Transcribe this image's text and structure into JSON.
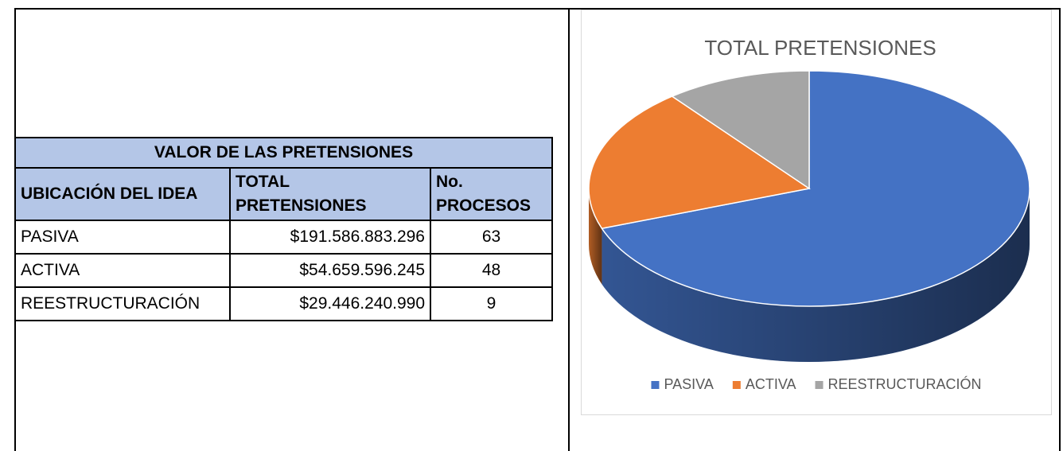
{
  "table": {
    "title": "VALOR DE LAS PRETENSIONES",
    "headers": [
      "UBICACIÓN DEL IDEA",
      "TOTAL PRETENSIONES",
      "No. PROCESOS"
    ],
    "rows": [
      [
        "PASIVA",
        "$191.586.883.296",
        "63"
      ],
      [
        "ACTIVA",
        "$54.659.596.245",
        "48"
      ],
      [
        "REESTRUCTURACIÓN",
        "$29.446.240.990",
        "9"
      ]
    ]
  },
  "chart_data": {
    "type": "pie",
    "title": "TOTAL PRETENSIONES",
    "categories": [
      "PASIVA",
      "ACTIVA",
      "REESTRUCTURACIÓN"
    ],
    "values": [
      191586883296,
      54659596245,
      29446240990
    ],
    "colors": [
      "#4472c4",
      "#ed7d31",
      "#a5a5a5"
    ],
    "legend": "bottom"
  }
}
